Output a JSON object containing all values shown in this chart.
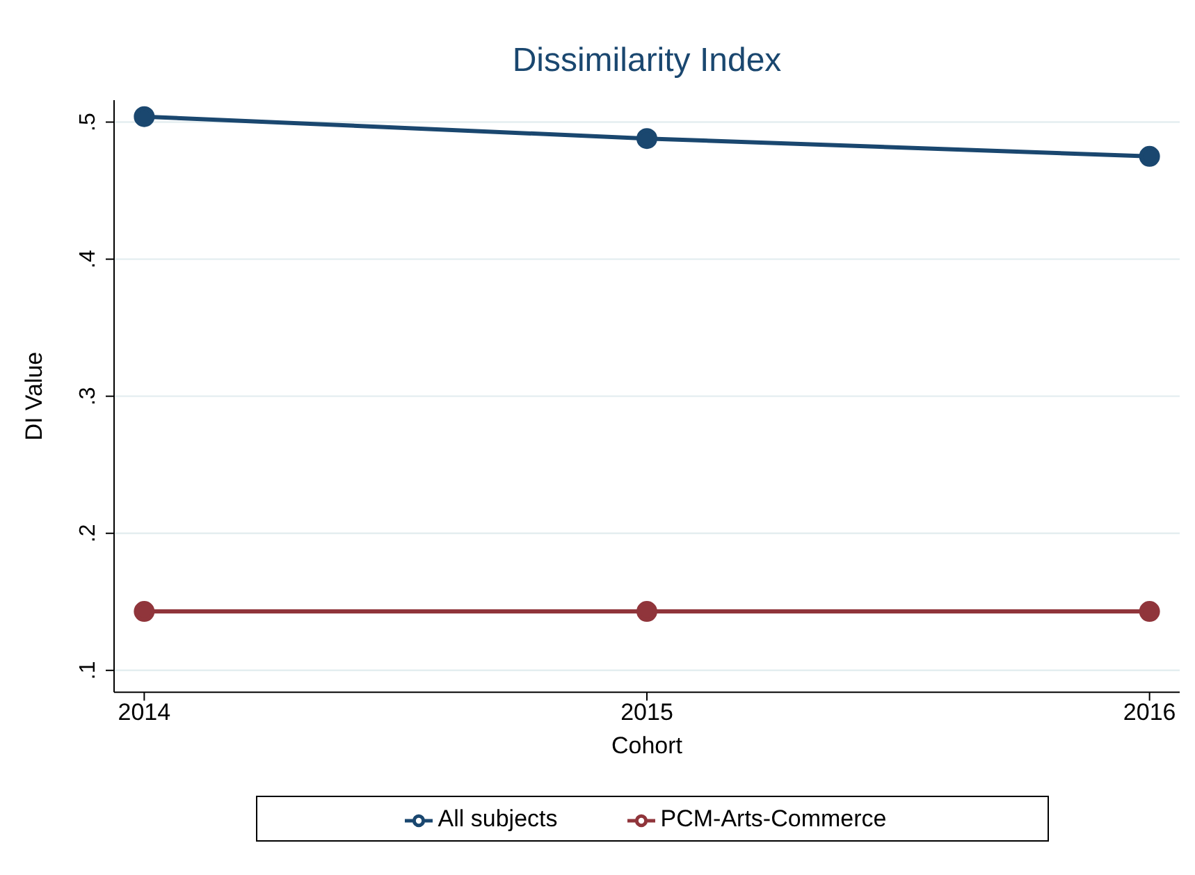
{
  "chart_data": {
    "type": "line",
    "title": "Dissimilarity Index",
    "xlabel": "Cohort",
    "ylabel": "DI Value",
    "x": [
      2014,
      2015,
      2016
    ],
    "series": [
      {
        "name": "All subjects",
        "color": "#1a476f",
        "values": [
          0.504,
          0.488,
          0.475
        ]
      },
      {
        "name": "PCM-Arts-Commerce",
        "color": "#90353b",
        "values": [
          0.143,
          0.143,
          0.143
        ]
      }
    ],
    "xlim": [
      2013.94,
      2016.06
    ],
    "xticks": [
      2014,
      2015,
      2016
    ],
    "ylim": [
      0.084,
      0.516
    ],
    "yticks": [
      {
        "value": 0.1,
        "label": ".1"
      },
      {
        "value": 0.2,
        "label": ".2"
      },
      {
        "value": 0.3,
        "label": ".3"
      },
      {
        "value": 0.4,
        "label": ".4"
      },
      {
        "value": 0.5,
        "label": ".5"
      }
    ],
    "grid": "y",
    "legend": "bottom",
    "marker": "circle",
    "line_style": "solid"
  }
}
